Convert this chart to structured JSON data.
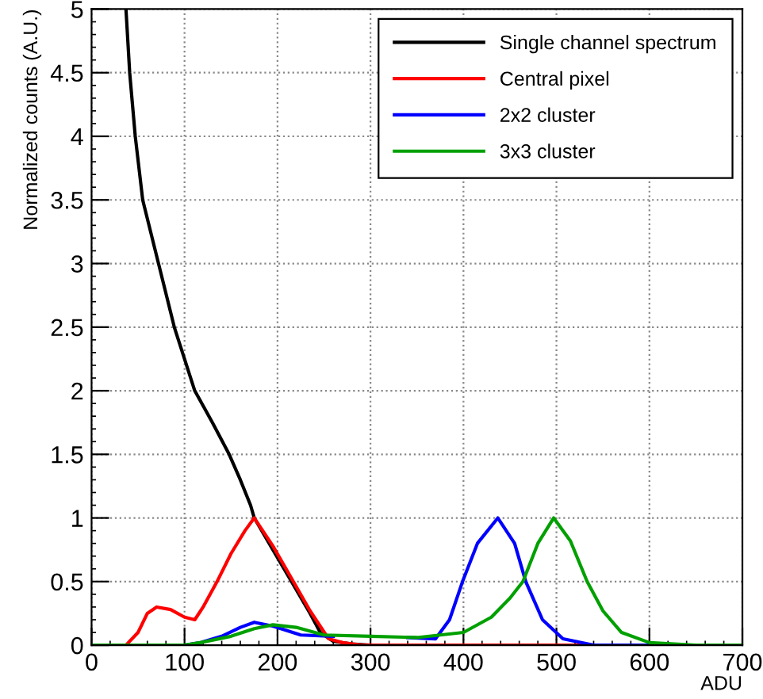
{
  "chart_data": {
    "type": "line",
    "xlabel": "ADU",
    "ylabel": "Normalized counts (A.U.)",
    "xlim": [
      0,
      700
    ],
    "ylim": [
      0,
      5
    ],
    "xticks": [
      0,
      100,
      200,
      300,
      400,
      500,
      600,
      700
    ],
    "yticks": [
      0,
      0.5,
      1,
      1.5,
      2,
      2.5,
      3,
      3.5,
      4,
      4.5,
      5
    ],
    "grid": true,
    "legend": "top right",
    "line_style": "solid",
    "marker": "none",
    "series": [
      {
        "name": "Single channel spectrum",
        "color": "#000000",
        "x": [
          37,
          41,
          47,
          55,
          72,
          89,
          111,
          130,
          148,
          160,
          171,
          175,
          195,
          215,
          235,
          246,
          260,
          280,
          300,
          700
        ],
        "values": [
          5,
          4.5,
          4,
          3.5,
          3,
          2.5,
          2,
          1.75,
          1.5,
          1.3,
          1.1,
          1.0,
          0.75,
          0.5,
          0.25,
          0.1,
          0.03,
          0.01,
          0,
          0
        ]
      },
      {
        "name": "Central pixel",
        "color": "#ff0000",
        "x": [
          0,
          37,
          50,
          60,
          70,
          85,
          100,
          111,
          120,
          135,
          150,
          165,
          175,
          195,
          217,
          235,
          255,
          270,
          290,
          700
        ],
        "values": [
          0,
          0,
          0.1,
          0.25,
          0.3,
          0.28,
          0.22,
          0.2,
          0.3,
          0.5,
          0.72,
          0.9,
          1.0,
          0.78,
          0.5,
          0.27,
          0.05,
          0.02,
          0,
          0
        ]
      },
      {
        "name": "2x2 cluster",
        "color": "#0000ff",
        "x": [
          0,
          100,
          117,
          140,
          160,
          175,
          195,
          225,
          260,
          300,
          340,
          370,
          385,
          399,
          415,
          437,
          455,
          467,
          485,
          507,
          540,
          700
        ],
        "values": [
          0,
          0,
          0.02,
          0.07,
          0.14,
          0.18,
          0.15,
          0.08,
          0.07,
          null,
          0.06,
          0.05,
          0.2,
          0.5,
          0.8,
          1.0,
          0.8,
          0.5,
          0.2,
          0.05,
          0,
          0
        ]
      },
      {
        "name": "3x3 cluster",
        "color": "#00a000",
        "x": [
          0,
          100,
          117,
          150,
          175,
          195,
          220,
          250,
          300,
          350,
          400,
          430,
          450,
          464,
          480,
          497,
          515,
          533,
          550,
          570,
          600,
          650,
          700
        ],
        "values": [
          0,
          0,
          0.02,
          0.07,
          0.13,
          0.16,
          0.14,
          0.08,
          0.07,
          0.06,
          0.1,
          0.22,
          0.37,
          0.5,
          0.8,
          1.0,
          0.82,
          0.5,
          0.27,
          0.1,
          0.02,
          0,
          0
        ]
      }
    ]
  }
}
